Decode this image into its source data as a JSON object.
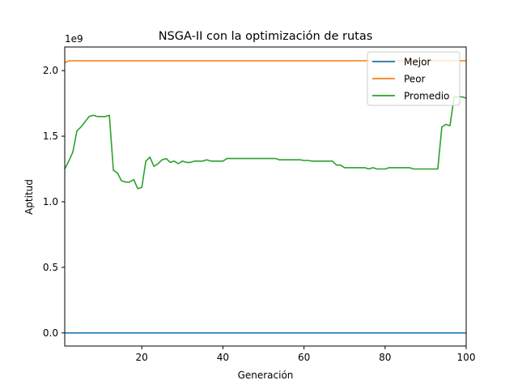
{
  "chart_data": {
    "type": "line",
    "title": "NSGA-II con la optimización de rutas",
    "xlabel": "Generación",
    "ylabel": "Aptitud",
    "y_offset_label": "1e9",
    "xlim": [
      1,
      100
    ],
    "ylim": [
      -0.1,
      2.18
    ],
    "x_ticks": [
      20,
      40,
      60,
      80,
      100
    ],
    "x_tick_labels": [
      "20",
      "40",
      "60",
      "80",
      "100"
    ],
    "y_ticks": [
      0.0,
      0.5,
      1.0,
      1.5,
      2.0
    ],
    "y_tick_labels": [
      "0.0",
      "0.5",
      "1.0",
      "1.5",
      "2.0"
    ],
    "grid": false,
    "legend_position": "top-right",
    "x": [
      1,
      2,
      3,
      4,
      5,
      6,
      7,
      8,
      9,
      10,
      11,
      12,
      13,
      14,
      15,
      16,
      17,
      18,
      19,
      20,
      21,
      22,
      23,
      24,
      25,
      26,
      27,
      28,
      29,
      30,
      31,
      32,
      33,
      34,
      35,
      36,
      37,
      38,
      39,
      40,
      41,
      42,
      43,
      44,
      45,
      46,
      47,
      48,
      49,
      50,
      51,
      52,
      53,
      54,
      55,
      56,
      57,
      58,
      59,
      60,
      61,
      62,
      63,
      64,
      65,
      66,
      67,
      68,
      69,
      70,
      71,
      72,
      73,
      74,
      75,
      76,
      77,
      78,
      79,
      80,
      81,
      82,
      83,
      84,
      85,
      86,
      87,
      88,
      89,
      90,
      91,
      92,
      93,
      94,
      95,
      96,
      97,
      98,
      99,
      100
    ],
    "series": [
      {
        "name": "Mejor",
        "color": "#1f77b4",
        "values": [
          0,
          0,
          0,
          0,
          0,
          0,
          0,
          0,
          0,
          0,
          0,
          0,
          0,
          0,
          0,
          0,
          0,
          0,
          0,
          0,
          0,
          0,
          0,
          0,
          0,
          0,
          0,
          0,
          0,
          0,
          0,
          0,
          0,
          0,
          0,
          0,
          0,
          0,
          0,
          0,
          0,
          0,
          0,
          0,
          0,
          0,
          0,
          0,
          0,
          0,
          0,
          0,
          0,
          0,
          0,
          0,
          0,
          0,
          0,
          0,
          0,
          0,
          0,
          0,
          0,
          0,
          0,
          0,
          0,
          0,
          0,
          0,
          0,
          0,
          0,
          0,
          0,
          0,
          0,
          0,
          0,
          0,
          0,
          0,
          0,
          0,
          0,
          0,
          0,
          0,
          0,
          0,
          0,
          0,
          0,
          0,
          0,
          0,
          0,
          0
        ]
      },
      {
        "name": "Peor",
        "color": "#ff7f0e",
        "values": [
          2.06,
          2.075,
          2.075,
          2.075,
          2.075,
          2.075,
          2.075,
          2.075,
          2.075,
          2.075,
          2.075,
          2.075,
          2.075,
          2.075,
          2.075,
          2.075,
          2.075,
          2.075,
          2.075,
          2.075,
          2.075,
          2.075,
          2.075,
          2.075,
          2.075,
          2.075,
          2.075,
          2.075,
          2.075,
          2.075,
          2.075,
          2.075,
          2.075,
          2.075,
          2.075,
          2.075,
          2.075,
          2.075,
          2.075,
          2.075,
          2.075,
          2.075,
          2.075,
          2.075,
          2.075,
          2.075,
          2.075,
          2.075,
          2.075,
          2.075,
          2.075,
          2.075,
          2.075,
          2.075,
          2.075,
          2.075,
          2.075,
          2.075,
          2.075,
          2.075,
          2.075,
          2.075,
          2.075,
          2.075,
          2.075,
          2.075,
          2.075,
          2.075,
          2.075,
          2.075,
          2.075,
          2.075,
          2.075,
          2.075,
          2.075,
          2.075,
          2.075,
          2.075,
          2.075,
          2.075,
          2.075,
          2.075,
          2.075,
          2.075,
          2.075,
          2.075,
          2.075,
          2.075,
          2.075,
          2.075,
          2.075,
          2.075,
          2.075,
          2.075,
          2.075,
          2.075,
          2.075,
          2.075,
          2.075,
          2.075
        ]
      },
      {
        "name": "Promedio",
        "color": "#2ca02c",
        "values": [
          1.25,
          1.31,
          1.38,
          1.54,
          1.57,
          1.61,
          1.65,
          1.66,
          1.65,
          1.65,
          1.65,
          1.66,
          1.24,
          1.22,
          1.16,
          1.15,
          1.15,
          1.17,
          1.1,
          1.11,
          1.31,
          1.34,
          1.27,
          1.29,
          1.32,
          1.33,
          1.3,
          1.31,
          1.29,
          1.31,
          1.3,
          1.3,
          1.31,
          1.31,
          1.31,
          1.32,
          1.31,
          1.31,
          1.31,
          1.31,
          1.33,
          1.33,
          1.33,
          1.33,
          1.33,
          1.33,
          1.33,
          1.33,
          1.33,
          1.33,
          1.33,
          1.33,
          1.33,
          1.32,
          1.32,
          1.32,
          1.32,
          1.32,
          1.32,
          1.315,
          1.315,
          1.31,
          1.31,
          1.31,
          1.31,
          1.31,
          1.31,
          1.28,
          1.28,
          1.26,
          1.26,
          1.26,
          1.26,
          1.26,
          1.26,
          1.25,
          1.26,
          1.25,
          1.25,
          1.25,
          1.26,
          1.26,
          1.26,
          1.26,
          1.26,
          1.26,
          1.25,
          1.25,
          1.25,
          1.25,
          1.25,
          1.25,
          1.25,
          1.57,
          1.59,
          1.58,
          1.8,
          1.8,
          1.8,
          1.79
        ]
      }
    ]
  }
}
